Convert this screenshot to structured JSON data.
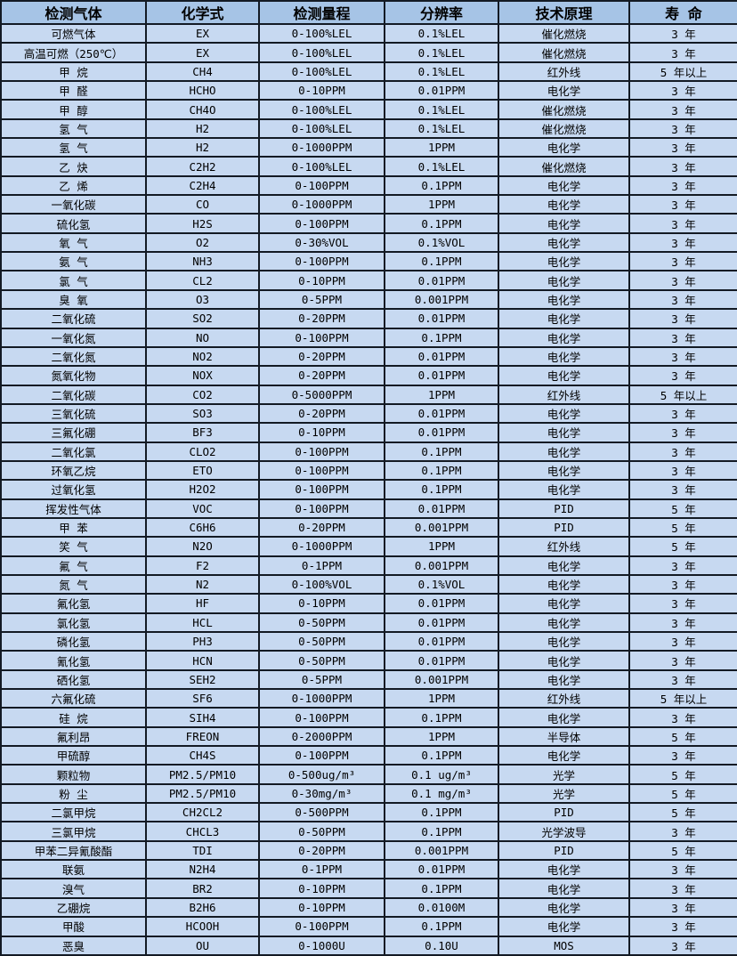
{
  "colors": {
    "header_bg": "#a6c4e6",
    "row_bg": "#c7d9f1",
    "border_color": "#131a24",
    "text_color": "#000000"
  },
  "table": {
    "columns": [
      "检测气体",
      "化学式",
      "检测量程",
      "分辨率",
      "技术原理",
      "寿 命"
    ],
    "column_keys": [
      "gas",
      "formula",
      "range",
      "resolution",
      "principle",
      "lifespan"
    ],
    "rows": [
      [
        "可燃气体",
        "EX",
        "0-100%LEL",
        "0.1%LEL",
        "催化燃烧",
        "3 年"
      ],
      [
        "高温可燃（250℃）",
        "EX",
        "0-100%LEL",
        "0.1%LEL",
        "催化燃烧",
        "3 年"
      ],
      [
        "甲 烷",
        "CH4",
        "0-100%LEL",
        "0.1%LEL",
        "红外线",
        "5 年以上"
      ],
      [
        "甲 醛",
        "HCHO",
        "0-10PPM",
        "0.01PPM",
        "电化学",
        "3 年"
      ],
      [
        "甲 醇",
        "CH4O",
        "0-100%LEL",
        "0.1%LEL",
        "催化燃烧",
        "3 年"
      ],
      [
        "氢 气",
        "H2",
        "0-100%LEL",
        "0.1%LEL",
        "催化燃烧",
        "3 年"
      ],
      [
        "氢 气",
        "H2",
        "0-1000PPM",
        "1PPM",
        "电化学",
        "3 年"
      ],
      [
        "乙 炔",
        "C2H2",
        "0-100%LEL",
        "0.1%LEL",
        "催化燃烧",
        "3 年"
      ],
      [
        "乙 烯",
        "C2H4",
        "0-100PPM",
        "0.1PPM",
        "电化学",
        "3 年"
      ],
      [
        "一氧化碳",
        "CO",
        "0-1000PPM",
        "1PPM",
        "电化学",
        "3 年"
      ],
      [
        "硫化氢",
        "H2S",
        "0-100PPM",
        "0.1PPM",
        "电化学",
        "3 年"
      ],
      [
        "氧 气",
        "O2",
        "0-30%VOL",
        "0.1%VOL",
        "电化学",
        "3 年"
      ],
      [
        "氨 气",
        "NH3",
        "0-100PPM",
        "0.1PPM",
        "电化学",
        "3 年"
      ],
      [
        "氯 气",
        "CL2",
        "0-10PPM",
        "0.01PPM",
        "电化学",
        "3 年"
      ],
      [
        "臭 氧",
        "O3",
        "0-5PPM",
        "0.001PPM",
        "电化学",
        "3 年"
      ],
      [
        "二氧化硫",
        "SO2",
        "0-20PPM",
        "0.01PPM",
        "电化学",
        "3 年"
      ],
      [
        "一氧化氮",
        "NO",
        "0-100PPM",
        "0.1PPM",
        "电化学",
        "3 年"
      ],
      [
        "二氧化氮",
        "NO2",
        "0-20PPM",
        "0.01PPM",
        "电化学",
        "3 年"
      ],
      [
        "氮氧化物",
        "NOX",
        "0-20PPM",
        "0.01PPM",
        "电化学",
        "3 年"
      ],
      [
        "二氧化碳",
        "CO2",
        "0-5000PPM",
        "1PPM",
        "红外线",
        "5 年以上"
      ],
      [
        "三氧化硫",
        "SO3",
        "0-20PPM",
        "0.01PPM",
        "电化学",
        "3 年"
      ],
      [
        "三氟化硼",
        "BF3",
        "0-10PPM",
        "0.01PPM",
        "电化学",
        "3 年"
      ],
      [
        "二氧化氯",
        "CLO2",
        "0-100PPM",
        "0.1PPM",
        "电化学",
        "3 年"
      ],
      [
        "环氧乙烷",
        "ETO",
        "0-100PPM",
        "0.1PPM",
        "电化学",
        "3 年"
      ],
      [
        "过氧化氢",
        "H2O2",
        "0-100PPM",
        "0.1PPM",
        "电化学",
        "3 年"
      ],
      [
        "挥发性气体",
        "VOC",
        "0-100PPM",
        "0.01PPM",
        "PID",
        "5 年"
      ],
      [
        "甲 苯",
        "C6H6",
        "0-20PPM",
        "0.001PPM",
        "PID",
        "5 年"
      ],
      [
        "笑 气",
        "N2O",
        "0-1000PPM",
        "1PPM",
        "红外线",
        "5 年"
      ],
      [
        "氟 气",
        "F2",
        "0-1PPM",
        "0.001PPM",
        "电化学",
        "3 年"
      ],
      [
        "氮 气",
        "N2",
        "0-100%VOL",
        "0.1%VOL",
        "电化学",
        "3 年"
      ],
      [
        "氟化氢",
        "HF",
        "0-10PPM",
        "0.01PPM",
        "电化学",
        "3 年"
      ],
      [
        "氯化氢",
        "HCL",
        "0-50PPM",
        "0.01PPM",
        "电化学",
        "3 年"
      ],
      [
        "磷化氢",
        "PH3",
        "0-50PPM",
        "0.01PPM",
        "电化学",
        "3 年"
      ],
      [
        "氰化氢",
        "HCN",
        "0-50PPM",
        "0.01PPM",
        "电化学",
        "3 年"
      ],
      [
        "硒化氢",
        "SEH2",
        "0-5PPM",
        "0.001PPM",
        "电化学",
        "3 年"
      ],
      [
        "六氟化硫",
        "SF6",
        "0-1000PPM",
        "1PPM",
        "红外线",
        "5 年以上"
      ],
      [
        "硅 烷",
        "SIH4",
        "0-100PPM",
        "0.1PPM",
        "电化学",
        "3 年"
      ],
      [
        "氟利昂",
        "FREON",
        "0-2000PPM",
        "1PPM",
        "半导体",
        "5 年"
      ],
      [
        "甲硫醇",
        "CH4S",
        "0-100PPM",
        "0.1PPM",
        "电化学",
        "3 年"
      ],
      [
        "颗粒物",
        "PM2.5/PM10",
        "0-500ug/m³",
        "0.1 ug/m³",
        "光学",
        "5 年"
      ],
      [
        "粉 尘",
        "PM2.5/PM10",
        "0-30mg/m³",
        "0.1 mg/m³",
        "光学",
        "5 年"
      ],
      [
        "二氯甲烷",
        "CH2CL2",
        "0-500PPM",
        "0.1PPM",
        "PID",
        "5 年"
      ],
      [
        "三氯甲烷",
        "CHCL3",
        "0-50PPM",
        "0.1PPM",
        "光学波导",
        "3 年"
      ],
      [
        "甲苯二异氰酸酯",
        "TDI",
        "0-20PPM",
        "0.001PPM",
        "PID",
        "5 年"
      ],
      [
        "联氨",
        "N2H4",
        "0-1PPM",
        "0.01PPM",
        "电化学",
        "3 年"
      ],
      [
        "溴气",
        "BR2",
        "0-10PPM",
        "0.1PPM",
        "电化学",
        "3 年"
      ],
      [
        "乙硼烷",
        "B2H6",
        "0-10PPM",
        "0.0100M",
        "电化学",
        "3 年"
      ],
      [
        "甲酸",
        "HCOOH",
        "0-100PPM",
        "0.1PPM",
        "电化学",
        "3 年"
      ],
      [
        "恶臭",
        "OU",
        "0-1000U",
        "0.10U",
        "MOS",
        "3 年"
      ]
    ]
  }
}
